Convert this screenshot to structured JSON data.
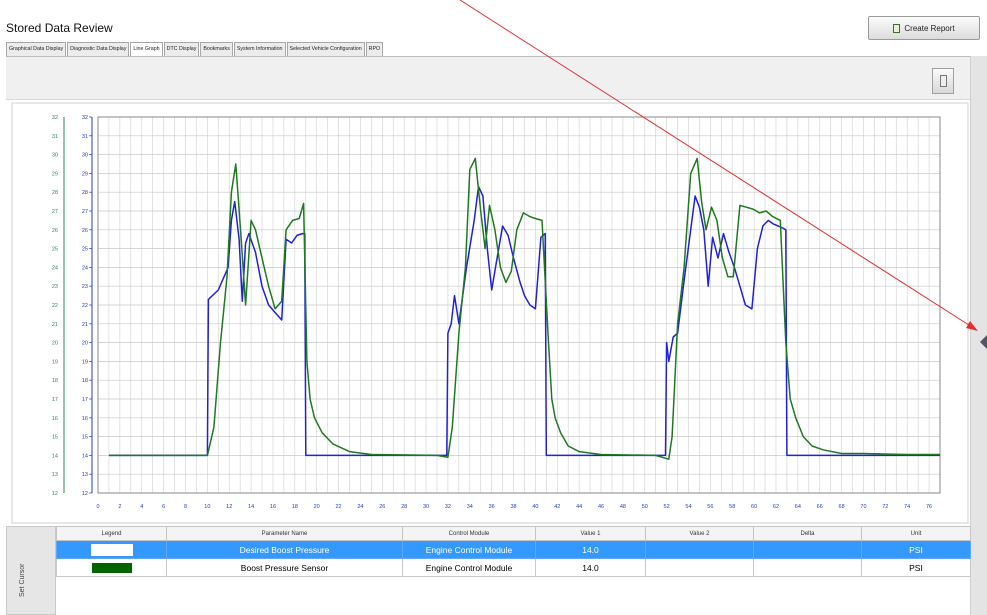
{
  "window": {
    "title": "Stored Data Review"
  },
  "toolbar": {
    "create_report_label": "Create Report",
    "report_icon": "report-document-icon"
  },
  "tabs": [
    {
      "label": "Graphical Data Display",
      "active": false
    },
    {
      "label": "Diagnostic Data Display",
      "active": false
    },
    {
      "label": "Line Graph",
      "active": true
    },
    {
      "label": "DTC Display",
      "active": false
    },
    {
      "label": "Bookmarks",
      "active": false
    },
    {
      "label": "System Information",
      "active": false
    },
    {
      "label": "Selected Vehicle Configuration",
      "active": false
    },
    {
      "label": "RPO",
      "active": false
    }
  ],
  "table": {
    "side_label": "Set Cursor",
    "columns": [
      "Legend",
      "Parameter Name",
      "Control Module",
      "Value 1",
      "Value 2",
      "Delta",
      "Unit"
    ],
    "rows": [
      {
        "legend_color": "#ffffff",
        "parameter": "Desired Boost Pressure",
        "module": "Engine Control Module",
        "value1": "14.0",
        "value2": "",
        "delta": "",
        "unit": "PSI",
        "selected": true
      },
      {
        "legend_color": "#006400",
        "parameter": "Boost Pressure Sensor",
        "module": "Engine Control Module",
        "value1": "14.0",
        "value2": "",
        "delta": "",
        "unit": "PSI",
        "selected": false
      }
    ]
  },
  "chart_data": {
    "type": "line",
    "xlim": [
      0,
      77
    ],
    "ylim": [
      12,
      32
    ],
    "x_ticks": [
      0,
      2,
      4,
      6,
      8,
      10,
      12,
      14,
      16,
      18,
      20,
      22,
      24,
      26,
      28,
      30,
      32,
      34,
      36,
      38,
      40,
      42,
      44,
      46,
      48,
      50,
      52,
      54,
      56,
      58,
      60,
      62,
      64,
      66,
      68,
      70,
      72,
      74,
      76
    ],
    "y_ticks": [
      12,
      13,
      14,
      15,
      16,
      17,
      18,
      19,
      20,
      21,
      22,
      23,
      24,
      25,
      26,
      27,
      28,
      29,
      30,
      31,
      32
    ],
    "grid": true,
    "axis_color_outer": "#2e8b57",
    "axis_color_inner": "#1f3fbf",
    "series": [
      {
        "name": "Desired Boost Pressure",
        "color": "#2020e0",
        "x": [
          1,
          9.9,
          10,
          10.1,
          11,
          11.9,
          12.2,
          12.5,
          12.9,
          13.2,
          13.5,
          13.8,
          14.4,
          15,
          15.6,
          16.2,
          16.8,
          17.2,
          17.7,
          18.2,
          18.7,
          18.9,
          19.0,
          20,
          22,
          24,
          31,
          31.9,
          32.0,
          32.3,
          32.6,
          33,
          33.7,
          34.4,
          34.8,
          35.2,
          35.6,
          36,
          36.5,
          37,
          37.5,
          38,
          38.6,
          39,
          39.5,
          40,
          40.5,
          40.9,
          41.0,
          42,
          44,
          46,
          51.5,
          51.9,
          52.0,
          52.2,
          52.6,
          53,
          53.6,
          54.2,
          54.6,
          55,
          55.4,
          55.8,
          56.2,
          56.7,
          57.2,
          57.7,
          58.2,
          58.7,
          59.2,
          59.8,
          60.3,
          60.8,
          61.3,
          61.8,
          62.2,
          62.6,
          62.9,
          63.0,
          64,
          66,
          70,
          77
        ],
        "y": [
          14,
          14,
          14,
          22.3,
          22.8,
          24,
          26.5,
          27.5,
          25.5,
          22.2,
          25.3,
          25.8,
          24.8,
          23,
          22,
          21.6,
          21.2,
          25.5,
          25.3,
          25.7,
          25.8,
          25.8,
          14,
          14,
          14,
          14,
          14,
          14,
          20.5,
          21,
          22.5,
          21,
          24,
          26.5,
          28.3,
          27.8,
          25,
          22.8,
          24.5,
          26.2,
          25.7,
          24.5,
          23.2,
          22.5,
          22,
          21.8,
          25.6,
          25.8,
          14,
          14,
          14,
          14,
          14,
          14,
          20,
          19,
          20.3,
          20.5,
          23.3,
          26,
          27.8,
          27.2,
          26,
          23,
          25.6,
          24.5,
          25.8,
          24.8,
          24,
          23,
          22,
          21.8,
          25,
          26.2,
          26.5,
          26.3,
          26.2,
          26.1,
          26,
          14,
          14,
          14,
          14,
          14
        ]
      },
      {
        "name": "Boost Pressure Sensor",
        "color": "#1f7a1f",
        "x": [
          1,
          10,
          10.6,
          11.2,
          11.8,
          12.2,
          12.6,
          13.1,
          13.5,
          14,
          14.4,
          15,
          15.6,
          16.2,
          16.8,
          17.2,
          17.8,
          18.4,
          18.8,
          19.1,
          19.4,
          19.8,
          20.5,
          21.5,
          23,
          25,
          31,
          32.0,
          32.4,
          33,
          33.6,
          34,
          34.5,
          35,
          35.4,
          35.8,
          36.3,
          36.8,
          37.3,
          37.8,
          38.3,
          38.9,
          39.5,
          40,
          40.6,
          41.2,
          41.5,
          41.8,
          42.3,
          43,
          44,
          46,
          51,
          52.2,
          52.5,
          53,
          53.6,
          54.2,
          54.8,
          55.2,
          55.6,
          56.1,
          56.6,
          57.1,
          57.6,
          58.1,
          58.7,
          59.3,
          59.9,
          60.5,
          61.1,
          61.7,
          62.4,
          62.9,
          63.3,
          63.8,
          64.5,
          65.3,
          66.3,
          68,
          70,
          74,
          77
        ],
        "y": [
          14,
          14,
          15.5,
          20,
          23.5,
          28,
          29.5,
          25.5,
          22,
          26.5,
          26,
          24.5,
          23,
          21.8,
          22.2,
          26,
          26.5,
          26.6,
          27.4,
          19,
          17,
          16,
          15.2,
          14.6,
          14.2,
          14.05,
          14,
          13.9,
          15.5,
          20.5,
          24,
          29.2,
          29.8,
          27,
          25,
          27.3,
          26,
          24,
          23.2,
          23.8,
          26,
          26.9,
          26.7,
          26.6,
          26.5,
          20,
          17,
          16,
          15.2,
          14.5,
          14.2,
          14.05,
          14,
          13.8,
          15,
          21,
          24,
          29,
          29.8,
          27.5,
          26,
          27.2,
          26.5,
          24.5,
          23.5,
          23.5,
          27.3,
          27.2,
          27.1,
          26.9,
          27,
          26.7,
          26.5,
          20,
          17,
          16,
          15,
          14.5,
          14.3,
          14.1,
          14.1,
          14.05,
          14.05
        ]
      }
    ]
  }
}
